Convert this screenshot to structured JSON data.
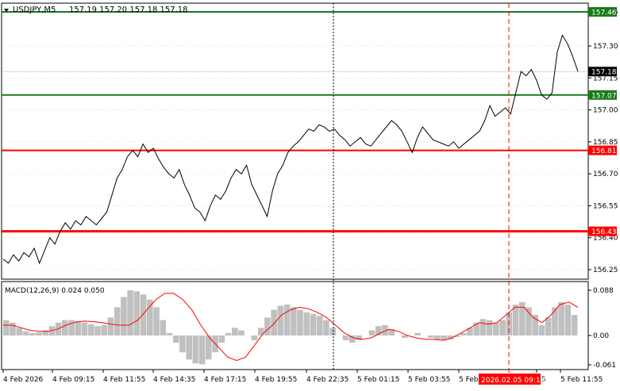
{
  "header": {
    "symbol": "USDJPY,M5",
    "ohlc": "157.19 157.20 157.18 157.18",
    "menu_icon": "triangle-down-icon"
  },
  "indicator": {
    "label": "MACD(12,26,9) 0.024 0.050"
  },
  "colors": {
    "background": "#ffffff",
    "grid": "#c8c8c8",
    "price_line": "#000000",
    "green_level": "#1a7a1a",
    "red_level": "#ff0000",
    "histogram": "#c0c0c0",
    "signal": "#ff0000",
    "current_price_bg": "#000000"
  },
  "chart_data": [
    {
      "type": "line",
      "series": [
        {
          "values": [
            156.3,
            156.28,
            156.32,
            156.29,
            156.33,
            156.31,
            156.35,
            156.28,
            156.34,
            156.4,
            156.37,
            156.43,
            156.47,
            156.44,
            156.48,
            156.46,
            156.5,
            156.48,
            156.46,
            156.49,
            156.52,
            156.6,
            156.68,
            156.72,
            156.78,
            156.81,
            156.78,
            156.84,
            156.8,
            156.82,
            156.77,
            156.73,
            156.7,
            156.68,
            156.72,
            156.65,
            156.6,
            156.54,
            156.52,
            156.48,
            156.55,
            156.6,
            156.58,
            156.62,
            156.68,
            156.72,
            156.7,
            156.74,
            156.65,
            156.6,
            156.55,
            156.5,
            156.62,
            156.7,
            156.74,
            156.8,
            156.83,
            156.85,
            156.88,
            156.91,
            156.9,
            156.93,
            156.92,
            156.9,
            156.91,
            156.88,
            156.86,
            156.83,
            156.85,
            156.87,
            156.84,
            156.83,
            156.86,
            156.89,
            156.92,
            156.95,
            156.93,
            156.9,
            156.85,
            156.8,
            156.87,
            156.92,
            156.89,
            156.86,
            156.85,
            156.84,
            156.83,
            156.85,
            156.82,
            156.84,
            156.86,
            156.88,
            156.9,
            156.95,
            157.02,
            156.97,
            156.99,
            157.01,
            156.98,
            157.08,
            157.18,
            157.16,
            157.19,
            157.14,
            157.07,
            157.05,
            157.08,
            157.27,
            157.35,
            157.31,
            157.25,
            157.18
          ],
          "x_range": [
            "4 Feb 2026",
            "5 Feb 11:55"
          ]
        }
      ],
      "x_ticks": [
        "4 Feb 2026",
        "4 Feb 09:15",
        "4 Feb 11:55",
        "4 Feb 14:35",
        "4 Feb 17:15",
        "4 Feb 19:55",
        "4 Feb 22:35",
        "5 Feb 01:15",
        "5 Feb 03:55",
        "5 Feb",
        "15",
        "5 Feb 11:55"
      ],
      "y_ticks": [
        "157.46",
        "157.30",
        "157.15",
        "157.00",
        "156.85",
        "156.70",
        "156.55",
        "156.40",
        "156.25"
      ],
      "ylim": [
        156.2,
        157.5
      ],
      "levels": [
        {
          "value": 157.46,
          "label": "157.46",
          "color": "green"
        },
        {
          "value": 157.07,
          "label": "157.07",
          "color": "green"
        },
        {
          "value": 156.81,
          "label": "156.81",
          "color": "red"
        },
        {
          "value": 156.43,
          "label": "156.43",
          "color": "red"
        }
      ],
      "current_price": "157.18",
      "cursor_time": "2026.02.05 09:10",
      "grid": true
    },
    {
      "type": "bar",
      "name": "MACD",
      "histogram": [
        0.03,
        0.025,
        0.015,
        0.008,
        0.005,
        0.006,
        0.01,
        0.018,
        0.025,
        0.03,
        0.03,
        0.028,
        0.025,
        0.022,
        0.018,
        0.02,
        0.035,
        0.055,
        0.075,
        0.088,
        0.086,
        0.08,
        0.07,
        0.055,
        0.03,
        0.005,
        -0.015,
        -0.035,
        -0.05,
        -0.058,
        -0.06,
        -0.05,
        -0.035,
        -0.015,
        0.005,
        0.015,
        0.01,
        0.0,
        -0.01,
        0.015,
        0.035,
        0.05,
        0.058,
        0.06,
        0.055,
        0.05,
        0.045,
        0.042,
        0.038,
        0.03,
        0.015,
        0.0,
        -0.01,
        -0.015,
        -0.01,
        0.0,
        0.01,
        0.018,
        0.02,
        0.012,
        0.0,
        -0.005,
        0.0,
        0.005,
        0.0,
        -0.005,
        -0.008,
        -0.01,
        -0.008,
        -0.003,
        0.005,
        0.015,
        0.025,
        0.032,
        0.03,
        0.025,
        0.03,
        0.045,
        0.06,
        0.065,
        0.055,
        0.04,
        0.02,
        0.035,
        0.055,
        0.065,
        0.06,
        0.04
      ],
      "signal": [
        0.02,
        0.02,
        0.015,
        0.01,
        0.008,
        0.008,
        0.012,
        0.02,
        0.026,
        0.028,
        0.027,
        0.025,
        0.022,
        0.02,
        0.02,
        0.03,
        0.05,
        0.07,
        0.082,
        0.082,
        0.07,
        0.05,
        0.02,
        -0.005,
        -0.025,
        -0.045,
        -0.052,
        -0.045,
        -0.02,
        0.005,
        0.02,
        0.04,
        0.05,
        0.055,
        0.052,
        0.045,
        0.035,
        0.02,
        0.005,
        -0.005,
        -0.008,
        -0.005,
        0.005,
        0.012,
        0.008,
        0.0,
        -0.005,
        -0.008,
        -0.008,
        -0.01,
        -0.005,
        0.005,
        0.015,
        0.025,
        0.022,
        0.025,
        0.04,
        0.055,
        0.055,
        0.035,
        0.025,
        0.04,
        0.06,
        0.065,
        0.055
      ],
      "y_ticks": [
        "0.088",
        "0.00",
        "-0.061"
      ],
      "ylim": [
        -0.07,
        0.095
      ]
    }
  ]
}
